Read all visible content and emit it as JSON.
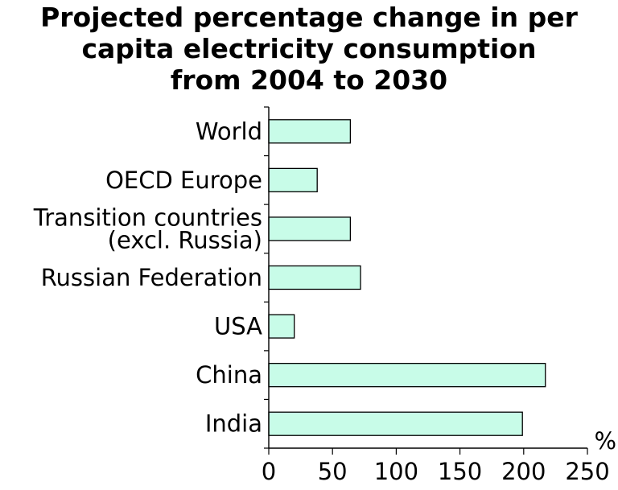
{
  "chart_data": {
    "type": "bar",
    "orientation": "horizontal",
    "title_lines": [
      "Projected percentage change in per",
      "capita electricity consumption",
      "from 2004 to 2030"
    ],
    "categories": [
      [
        "World"
      ],
      [
        "OECD Europe"
      ],
      [
        "Transition countries",
        "(excl. Russia)"
      ],
      [
        "Russian Federation"
      ],
      [
        "USA"
      ],
      [
        "China"
      ],
      [
        "India"
      ]
    ],
    "values": [
      64,
      38,
      64,
      72,
      20,
      217,
      199
    ],
    "xlim": [
      0,
      250
    ],
    "xticks": [
      "0",
      "50",
      "100",
      "150",
      "200",
      "250"
    ],
    "unit": "%",
    "bar_color": "#c8fce8",
    "grid": false
  }
}
